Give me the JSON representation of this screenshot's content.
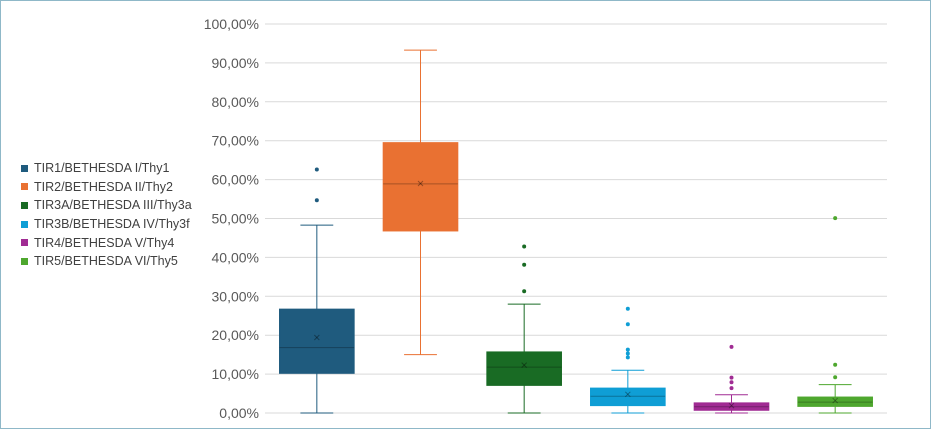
{
  "chart_data": {
    "type": "boxplot",
    "ylim": [
      0,
      100
    ],
    "y_ticks": [
      "0,00%",
      "10,00%",
      "20,00%",
      "30,00%",
      "40,00%",
      "50,00%",
      "60,00%",
      "70,00%",
      "80,00%",
      "90,00%",
      "100,00%"
    ],
    "grid": true,
    "legend_position": "left",
    "series": [
      {
        "name": "TIR1/BETHESDA I/Thy1",
        "color": "#1f5b7e",
        "min": 0,
        "q1": 10.2,
        "median": 16.8,
        "mean": 19.4,
        "q3": 26.7,
        "max": 48.3,
        "outliers": [
          54.7,
          62.6
        ]
      },
      {
        "name": "TIR2/BETHESDA II/Thy2",
        "color": "#e97132",
        "min": 15.0,
        "q1": 46.8,
        "median": 58.9,
        "mean": 59.0,
        "q3": 69.5,
        "max": 93.3,
        "outliers": []
      },
      {
        "name": "TIR3A/BETHESDA III/Thy3a",
        "color": "#196b24",
        "min": 0,
        "q1": 7.1,
        "median": 11.8,
        "mean": 12.3,
        "q3": 15.7,
        "max": 28.0,
        "outliers": [
          31.3,
          38.1,
          42.8
        ]
      },
      {
        "name": "TIR3B/BETHESDA IV/Thy3f",
        "color": "#0f9ed5",
        "min": 0,
        "q1": 1.9,
        "median": 4.3,
        "mean": 4.8,
        "q3": 6.4,
        "max": 11.0,
        "outliers": [
          14.3,
          15.3,
          16.3,
          22.8,
          26.8
        ]
      },
      {
        "name": "TIR4/BETHESDA V/Thy4",
        "color": "#a02b93",
        "min": 0,
        "q1": 0.7,
        "median": 1.6,
        "mean": 1.9,
        "q3": 2.6,
        "max": 4.7,
        "outliers": [
          6.4,
          7.9,
          9.1,
          17.0
        ]
      },
      {
        "name": "TIR5/BETHESDA VI/Thy5",
        "color": "#4ea72e",
        "min": 0,
        "q1": 1.7,
        "median": 2.8,
        "mean": 3.2,
        "q3": 4.1,
        "max": 7.3,
        "outliers": [
          9.2,
          12.4,
          50.1
        ]
      }
    ]
  }
}
